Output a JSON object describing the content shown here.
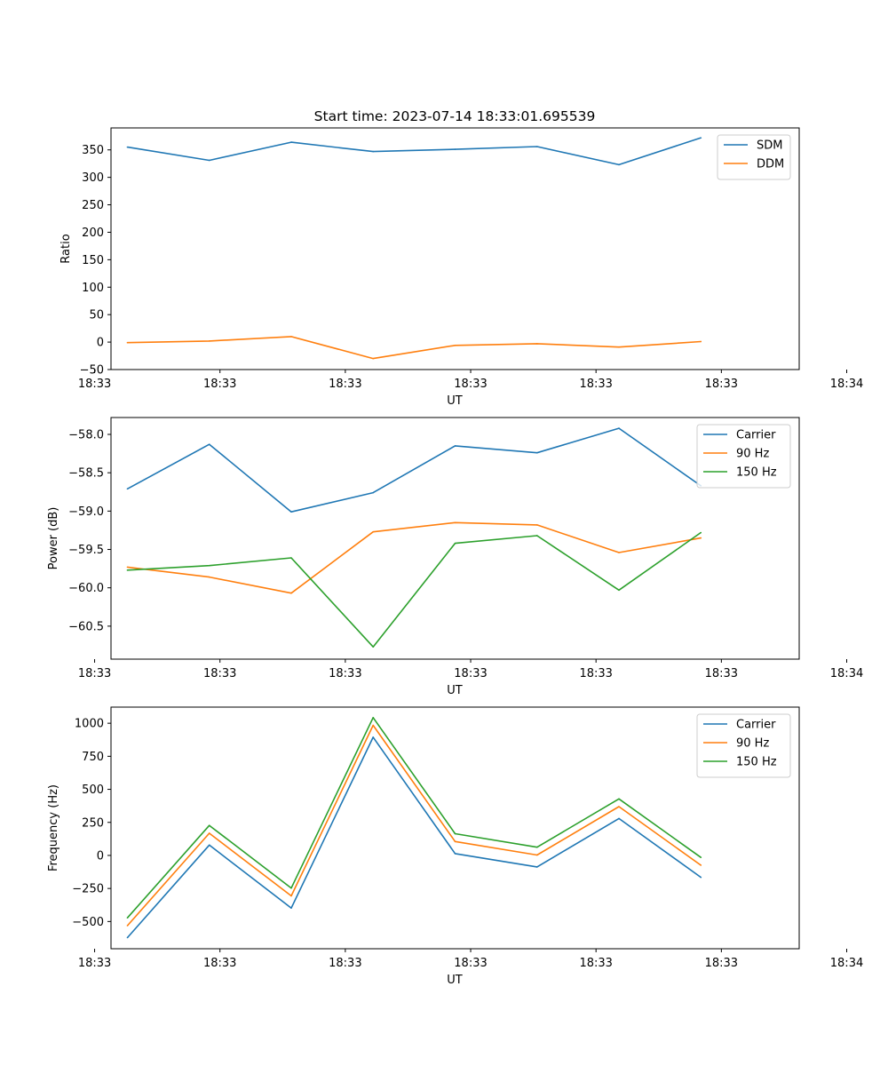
{
  "figure": {
    "title": "Start time: 2023-07-14 18:33:01.695539"
  },
  "chart_data": [
    {
      "type": "line",
      "title": "Start time: 2023-07-14 18:33:01.695539",
      "xlabel": "UT",
      "ylabel": "Ratio",
      "x": [
        1,
        2,
        3,
        4,
        5,
        6,
        7,
        8
      ],
      "xlim": [
        0.8,
        9.2
      ],
      "x_ticks": [
        1.0,
        2.5,
        4.0,
        5.5,
        7.0,
        8.5,
        10.0
      ],
      "x_tick_positions": [
        0.6,
        2.13,
        3.66,
        5.19,
        6.72,
        8.25,
        9.78
      ],
      "x_tick_labels": [
        "18:33",
        "18:33",
        "18:33",
        "18:33",
        "18:33",
        "18:33",
        "18:34"
      ],
      "ylim": [
        -50,
        390
      ],
      "y_ticks": [
        -50,
        0,
        50,
        100,
        150,
        200,
        250,
        300,
        350
      ],
      "y_tick_labels": [
        "−50",
        "0",
        "50",
        "100",
        "150",
        "200",
        "250",
        "300",
        "350"
      ],
      "legend": "top-right",
      "series": [
        {
          "name": "SDM",
          "color": "#1f77b4",
          "values": [
            355,
            331,
            364,
            347,
            351,
            356,
            323,
            372
          ]
        },
        {
          "name": "DDM",
          "color": "#ff7f0e",
          "values": [
            -1,
            2,
            10,
            -30,
            -6,
            -3,
            -9,
            1
          ]
        }
      ]
    },
    {
      "type": "line",
      "title": "",
      "xlabel": "UT",
      "ylabel": "Power (dB)",
      "x": [
        1,
        2,
        3,
        4,
        5,
        6,
        7,
        8
      ],
      "xlim": [
        0.8,
        9.2
      ],
      "x_tick_positions": [
        0.6,
        2.13,
        3.66,
        5.19,
        6.72,
        8.25,
        9.78
      ],
      "x_tick_labels": [
        "18:33",
        "18:33",
        "18:33",
        "18:33",
        "18:33",
        "18:33",
        "18:34"
      ],
      "ylim": [
        -60.93,
        -57.78
      ],
      "y_ticks": [
        -60.5,
        -60.0,
        -59.5,
        -59.0,
        -58.5,
        -58.0
      ],
      "y_tick_labels": [
        "−60.5",
        "−60.0",
        "−59.5",
        "−59.0",
        "−58.5",
        "−58.0"
      ],
      "legend": "top-right",
      "series": [
        {
          "name": "Carrier",
          "color": "#1f77b4",
          "values": [
            -58.71,
            -58.13,
            -59.01,
            -58.76,
            -58.15,
            -58.24,
            -57.92,
            -58.67
          ]
        },
        {
          "name": "90 Hz",
          "color": "#ff7f0e",
          "values": [
            -59.73,
            -59.86,
            -60.07,
            -59.27,
            -59.15,
            -59.18,
            -59.54,
            -59.35
          ]
        },
        {
          "name": "150 Hz",
          "color": "#2ca02c",
          "values": [
            -59.77,
            -59.71,
            -59.61,
            -60.77,
            -59.42,
            -59.32,
            -60.03,
            -59.28
          ]
        }
      ]
    },
    {
      "type": "line",
      "title": "",
      "xlabel": "UT",
      "ylabel": "Frequency (Hz)",
      "x": [
        1,
        2,
        3,
        4,
        5,
        6,
        7,
        8
      ],
      "xlim": [
        0.8,
        9.2
      ],
      "x_tick_positions": [
        0.6,
        2.13,
        3.66,
        5.19,
        6.72,
        8.25,
        9.78
      ],
      "x_tick_labels": [
        "18:33",
        "18:33",
        "18:33",
        "18:33",
        "18:33",
        "18:33",
        "18:34"
      ],
      "ylim": [
        -706,
        1122
      ],
      "y_ticks": [
        -500,
        -250,
        0,
        250,
        500,
        750,
        1000
      ],
      "y_tick_labels": [
        "−500",
        "−250",
        "0",
        "250",
        "500",
        "750",
        "1000"
      ],
      "legend": "top-right",
      "series": [
        {
          "name": "Carrier",
          "color": "#1f77b4",
          "values": [
            -622,
            78,
            -398,
            894,
            14,
            -87,
            279,
            -166
          ]
        },
        {
          "name": "90 Hz",
          "color": "#ff7f0e",
          "values": [
            -531,
            168,
            -306,
            984,
            105,
            3,
            369,
            -74
          ]
        },
        {
          "name": "150 Hz",
          "color": "#2ca02c",
          "values": [
            -472,
            227,
            -247,
            1043,
            164,
            62,
            428,
            -15
          ]
        }
      ]
    }
  ]
}
